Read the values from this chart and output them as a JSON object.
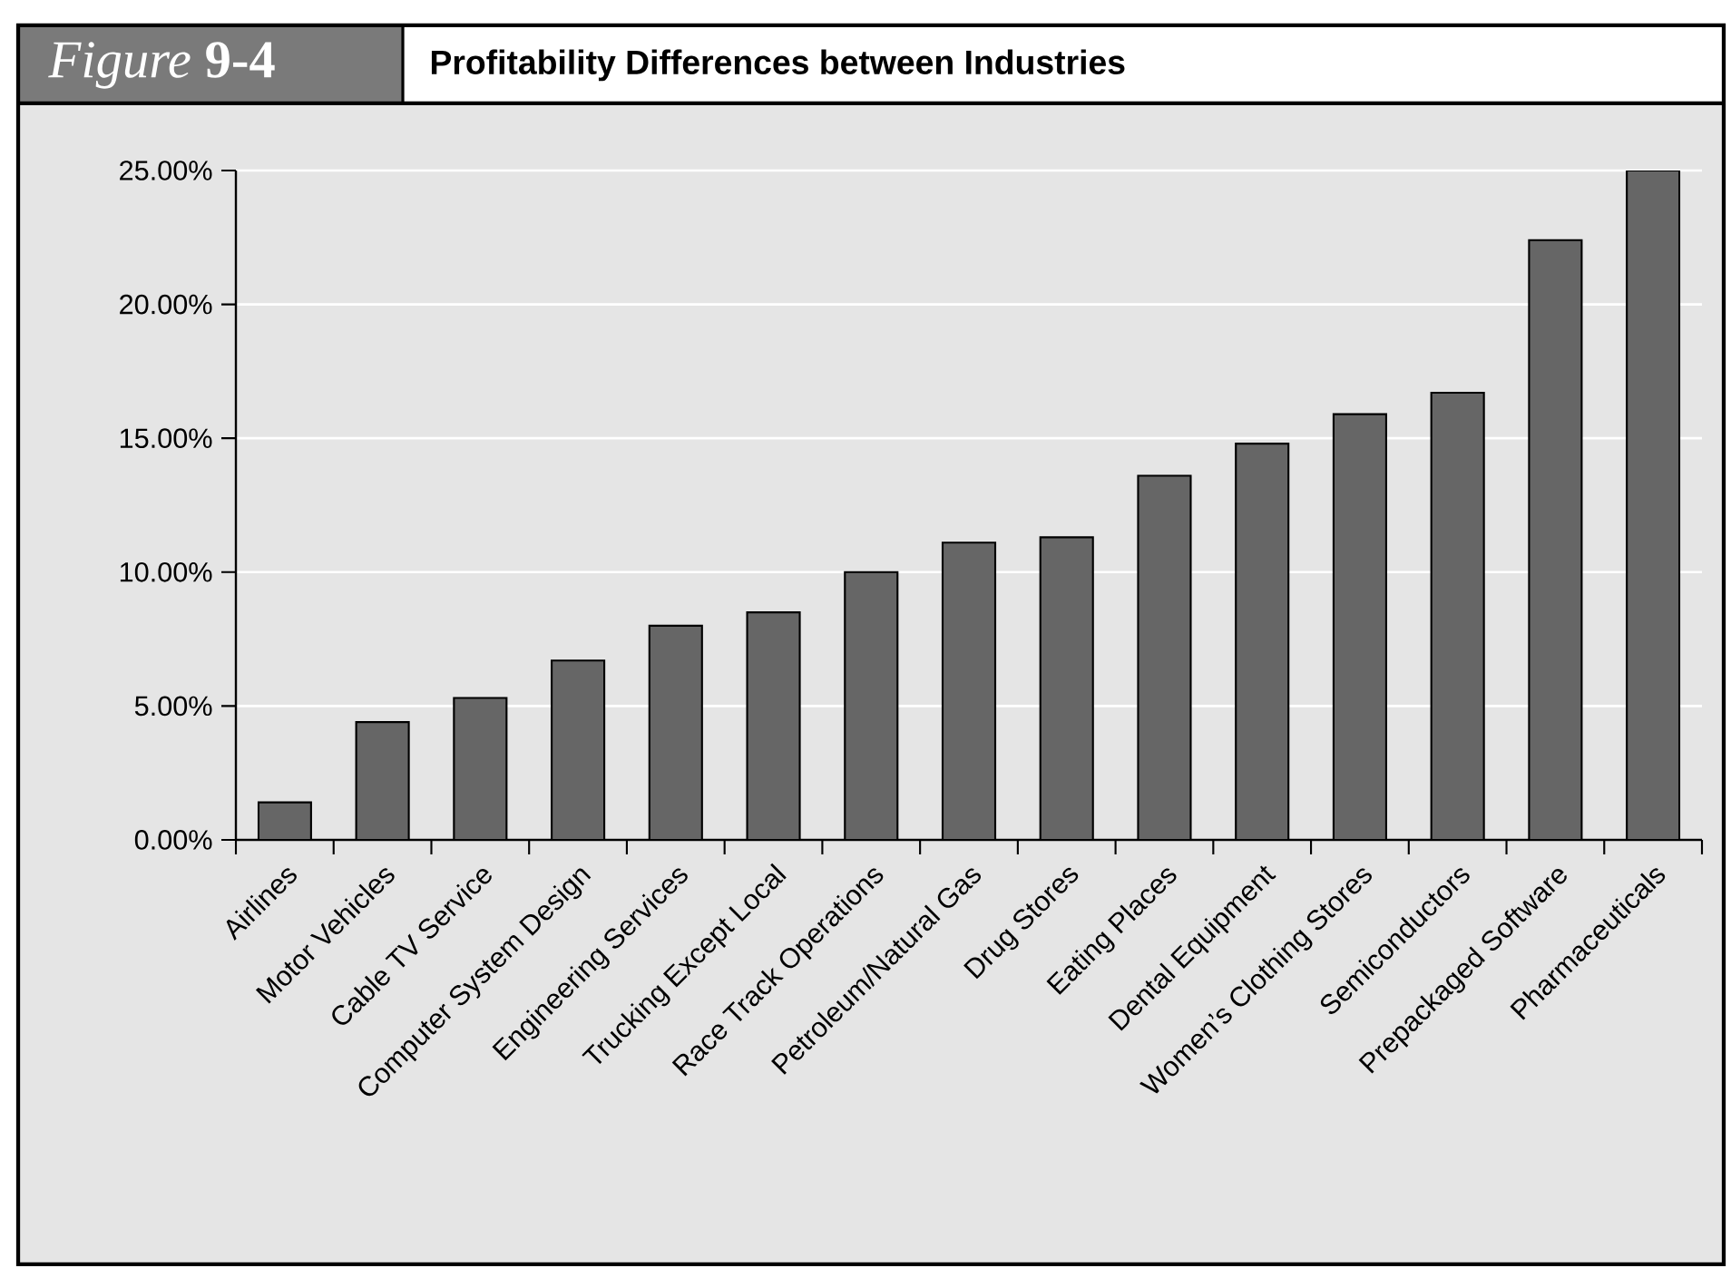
{
  "chart_data": {
    "type": "bar",
    "title": "Profitability Differences between Industries",
    "annotations": [
      "*Figure* **9-4**"
    ],
    "categories": [
      "Airlines",
      "Motor Vehicles",
      "Cable TV Service",
      "Computer System Design",
      "Engineering Services",
      "Trucking Except Local",
      "Race Track Operations",
      "Petroleum/Natural Gas",
      "Drug Stores",
      "Eating Places",
      "Dental Equipment",
      "Women’s Clothing Stores",
      "Semiconductors",
      "Prepackaged Software",
      "Pharmaceuticals"
    ],
    "values": [
      1.4,
      4.4,
      5.3,
      6.7,
      8.0,
      8.5,
      10.0,
      11.1,
      11.3,
      13.6,
      14.8,
      15.9,
      16.7,
      22.4,
      25.0
    ],
    "color": "#666666",
    "ylim": [
      0,
      25
    ],
    "yticks": [
      {
        "value": 0,
        "label": "0.00%"
      },
      {
        "value": 5,
        "label": "5.00%"
      },
      {
        "value": 10,
        "label": "10.00%"
      },
      {
        "value": 15,
        "label": "15.00%"
      },
      {
        "value": 20,
        "label": "20.00%"
      },
      {
        "value": 25,
        "label": "25.00%"
      }
    ],
    "grid": "y"
  }
}
